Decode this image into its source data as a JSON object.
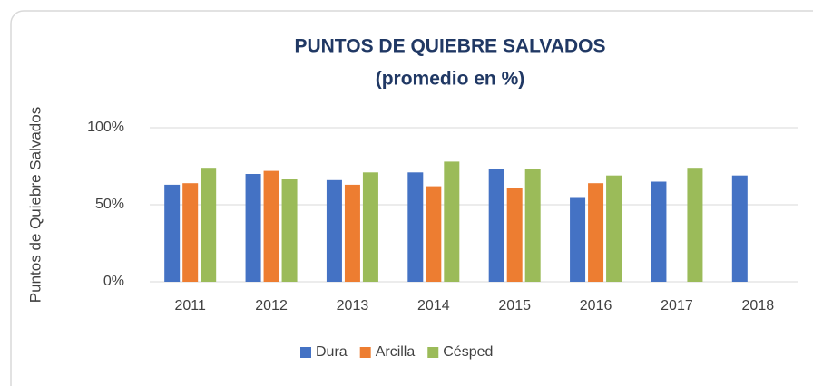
{
  "chart_data": {
    "type": "bar",
    "title": "PUNTOS DE QUIEBRE SALVADOS",
    "subtitle": "(promedio en %)",
    "y_label": "Puntos de Quiebre Salvados",
    "categories": [
      "2011",
      "2012",
      "2013",
      "2014",
      "2015",
      "2016",
      "2017",
      "2018"
    ],
    "series": [
      {
        "name": "Dura",
        "color": "#4472c4",
        "values": [
          63,
          70,
          66,
          71,
          73,
          55,
          65,
          69
        ]
      },
      {
        "name": "Arcilla",
        "color": "#ed7d31",
        "values": [
          64,
          72,
          63,
          62,
          61,
          64,
          null,
          null
        ]
      },
      {
        "name": "Césped",
        "color": "#9bbb59",
        "values": [
          74,
          67,
          71,
          78,
          73,
          69,
          74,
          null
        ]
      }
    ],
    "ylim": [
      0,
      100
    ],
    "yticks": [
      {
        "value": 0,
        "label": "0%"
      },
      {
        "value": 50,
        "label": "50%"
      },
      {
        "value": 100,
        "label": "100%"
      }
    ],
    "grid": true,
    "legend": "bottom"
  }
}
